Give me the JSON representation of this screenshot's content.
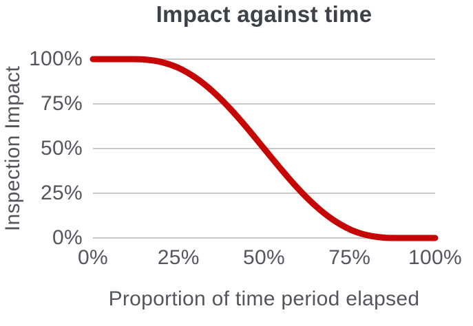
{
  "chart_data": {
    "type": "line",
    "title": "Impact against time",
    "xlabel": "Proportion of time period elapsed",
    "ylabel": "Inspection Impact",
    "x_tick_labels": [
      "0%",
      "25%",
      "50%",
      "75%",
      "100%"
    ],
    "y_tick_labels": [
      "100%",
      "75%",
      "50%",
      "25%",
      "0%"
    ],
    "xlim": [
      0,
      1
    ],
    "ylim": [
      0,
      1
    ],
    "grid": "horizontal-only",
    "legend": "none",
    "colors": {
      "line": "#c60505",
      "gridline": "#c7c7c7",
      "title_text": "#3d4148",
      "axis_text": "#53565d",
      "background": "#ffffff"
    },
    "series": [
      {
        "name": "Inspection Impact",
        "x": [
          0,
          0.05,
          0.1,
          0.15,
          0.2,
          0.25,
          0.3,
          0.35,
          0.4,
          0.45,
          0.5,
          0.55,
          0.6,
          0.65,
          0.7,
          0.75,
          0.8,
          0.85,
          0.9,
          0.95,
          1.0
        ],
        "y": [
          1.0,
          1.0,
          1.0,
          0.998,
          0.984,
          0.951,
          0.896,
          0.82,
          0.725,
          0.616,
          0.5,
          0.384,
          0.275,
          0.18,
          0.104,
          0.049,
          0.016,
          0.002,
          0.0,
          0.0,
          0.0
        ]
      }
    ]
  }
}
